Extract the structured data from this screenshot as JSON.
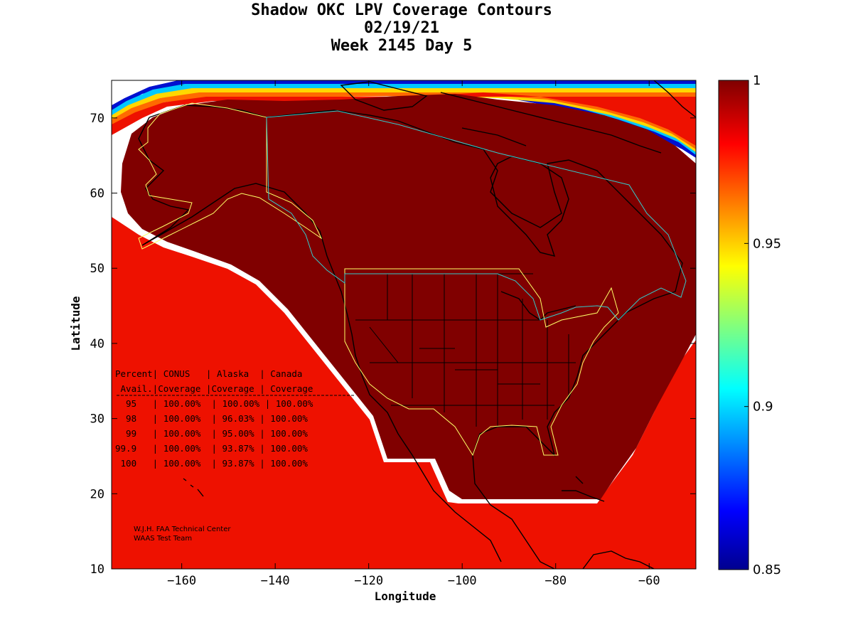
{
  "title": {
    "line1": "Shadow OKC LPV Coverage Contours",
    "line2": "02/19/21",
    "line3": "Week 2145 Day 5"
  },
  "axes": {
    "xlabel": "Longitude",
    "ylabel": "Latitude",
    "xlim": [
      -175,
      -50
    ],
    "ylim": [
      10,
      75
    ],
    "xticks": [
      -160,
      -140,
      -120,
      -100,
      -80,
      -60
    ],
    "yticks": [
      10,
      20,
      30,
      40,
      50,
      60,
      70
    ]
  },
  "colorbar": {
    "min": 0.85,
    "max": 1,
    "ticks": [
      "1",
      "0.95",
      "0.9",
      "0.85"
    ]
  },
  "table": {
    "header1": "Percent| CONUS   | Alaska  | Canada",
    "header2": " Avail.|Coverage |Coverage | Coverage",
    "rows": [
      "  95   | 100.00%  | 100.00% | 100.00%",
      "  98   | 100.00%  | 96.03% | 100.00%",
      "  99   | 100.00%  | 95.00% | 100.00%",
      "99.9   | 100.00%  | 93.87% | 100.00%",
      " 100   | 100.00%  | 93.87% | 100.00%"
    ]
  },
  "credit": {
    "line1": "W.J.H. FAA Technical Center",
    "line2": "WAAS Test Team"
  },
  "colors": {
    "full": "#800000",
    "red": "#ff1a00",
    "orange": "#ff8c00",
    "yellow": "#ffee00",
    "cyan": "#00d8ff",
    "blue": "#0020ff",
    "navy": "#00008c",
    "coastline": "#000000",
    "alaska_boundary": "#ffff66",
    "canada_boundary": "#33cccc"
  }
}
